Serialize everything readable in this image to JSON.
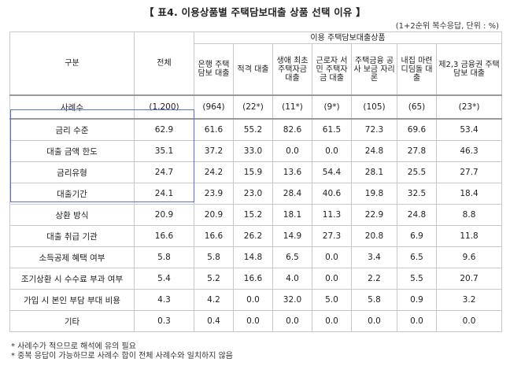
{
  "title": "【 표4. 이용상품별 주택담보대출 상품 선택 이유 】",
  "unit_note": "(1+2순위 복수응답, 단위 : %)",
  "header": {
    "row_label": "구분",
    "total": "전체",
    "group": "이용 주택담보대출상품",
    "products": [
      "은행 주택 담보 대출",
      "적격 대출",
      "생애 최초 주택자금 대출",
      "근로자 서민 주택자금 대출",
      "주택금융 공사 보금 자리론",
      "내집 마련 디딤돌 대출",
      "제2,3 금융권 주택담보 대출"
    ]
  },
  "count_row": {
    "label": "사례수",
    "values": [
      "(1,200)",
      "(964)",
      "(22*)",
      "(11*)",
      "(9*)",
      "(105)",
      "(65)",
      "(23*)"
    ]
  },
  "rows": [
    {
      "label": "금리 수준",
      "values": [
        "62.9",
        "61.6",
        "55.2",
        "82.6",
        "61.5",
        "72.3",
        "69.6",
        "53.4"
      ]
    },
    {
      "label": "대출 금액 한도",
      "values": [
        "35.1",
        "37.2",
        "33.0",
        "0.0",
        "0.0",
        "24.8",
        "27.8",
        "46.3"
      ]
    },
    {
      "label": "금리유형",
      "values": [
        "24.7",
        "24.2",
        "15.9",
        "13.6",
        "54.4",
        "28.1",
        "25.5",
        "27.7"
      ]
    },
    {
      "label": "대출기간",
      "values": [
        "24.1",
        "23.9",
        "23.0",
        "28.4",
        "40.6",
        "19.8",
        "32.5",
        "18.4"
      ]
    },
    {
      "label": "상환 방식",
      "values": [
        "20.9",
        "20.9",
        "15.2",
        "18.1",
        "11.3",
        "22.9",
        "24.8",
        "8.8"
      ]
    },
    {
      "label": "대출 취급 기관",
      "values": [
        "16.6",
        "16.6",
        "26.2",
        "14.9",
        "27.3",
        "20.8",
        "6.9",
        "11.8"
      ]
    },
    {
      "label": "소득공제 혜택 여부",
      "values": [
        "5.8",
        "5.8",
        "14.8",
        "6.5",
        "0.0",
        "3.4",
        "6.5",
        "9.6"
      ]
    },
    {
      "label": "조기상환 시 수수료 부과 여부",
      "values": [
        "5.4",
        "5.2",
        "16.6",
        "4.0",
        "0.0",
        "2.2",
        "5.5",
        "20.7"
      ]
    },
    {
      "label": "가입 시 본인 부담 부대 비용",
      "values": [
        "4.3",
        "4.2",
        "0.0",
        "32.0",
        "5.0",
        "5.8",
        "0.9",
        "3.2"
      ]
    },
    {
      "label": "기타",
      "values": [
        "0.3",
        "0.4",
        "0.0",
        "0.0",
        "0.0",
        "0.0",
        "0.0",
        "0.0"
      ]
    }
  ],
  "notes": [
    "* 사례수가 적으므로 해석에 유의 필요",
    "* 중복 응답이 가능하므로 사례수 합이 전체 사례수와 일치하지 않음"
  ]
}
